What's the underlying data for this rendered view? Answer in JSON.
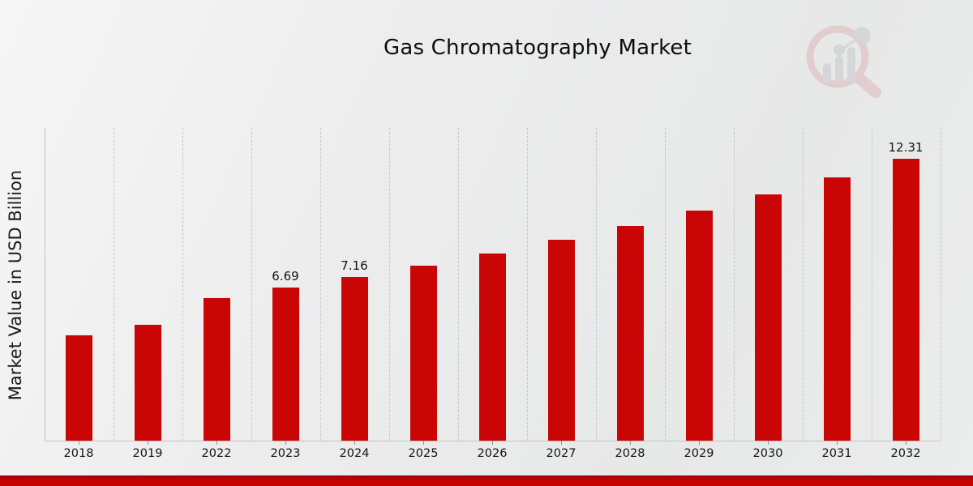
{
  "header": {
    "title": "Gas Chromatography Market"
  },
  "chart_data": {
    "type": "bar",
    "title": "Gas Chromatography Market",
    "xlabel": "",
    "ylabel": "Market Value in USD Billion",
    "categories": [
      "2018",
      "2019",
      "2022",
      "2023",
      "2024",
      "2025",
      "2026",
      "2027",
      "2028",
      "2029",
      "2030",
      "2031",
      "2032"
    ],
    "values": [
      4.61,
      5.09,
      6.25,
      6.69,
      7.16,
      7.66,
      8.2,
      8.78,
      9.39,
      10.05,
      10.76,
      11.51,
      12.31
    ],
    "data_labels": {
      "2023": "6.69",
      "2024": "7.16",
      "2032": "12.31"
    },
    "ylim": [
      0,
      13.66
    ],
    "grid": "vertical-dashed",
    "legend": "none",
    "bar_color": "#c90505",
    "gridline_color": "#c6c7c8",
    "axis_color": "#c3c3c3"
  },
  "branding": {
    "logo_name": "market-research-future-watermark",
    "ring_color": "#dfb7b9",
    "bars_color": "#c7c8cc"
  },
  "footer": {
    "stripe_color": "#c60203"
  }
}
